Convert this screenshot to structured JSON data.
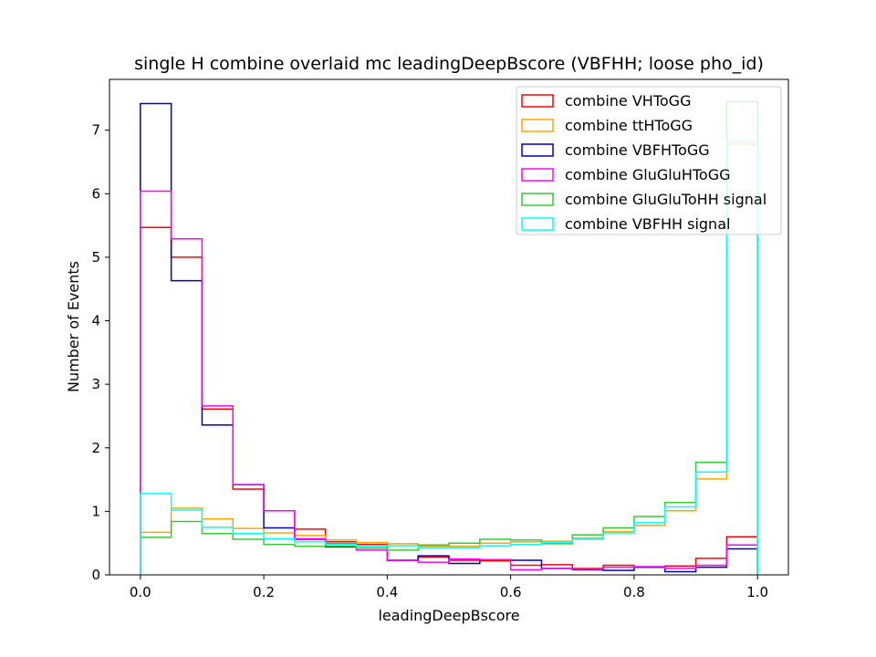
{
  "chart_data": {
    "type": "histogram-step",
    "title": "single H combine overlaid mc leadingDeepBscore (VBFHH; loose pho_id)",
    "xlabel": "leadingDeepBscore",
    "ylabel": "Number of Events",
    "xlim": [
      -0.05,
      1.05
    ],
    "ylim": [
      0,
      7.8
    ],
    "xticks": [
      "0.0",
      "0.2",
      "0.4",
      "0.6",
      "0.8",
      "1.0"
    ],
    "yticks": [
      "0",
      "1",
      "2",
      "3",
      "4",
      "5",
      "6",
      "7"
    ],
    "legend_position": "upper right",
    "bin_edges": [
      0.0,
      0.05,
      0.1,
      0.15,
      0.2,
      0.25,
      0.3,
      0.35,
      0.4,
      0.45,
      0.5,
      0.55,
      0.6,
      0.65,
      0.7,
      0.75,
      0.8,
      0.85,
      0.9,
      0.95,
      1.0
    ],
    "series": [
      {
        "name": "combine VHToGG",
        "color": "#ff0000",
        "values": [
          5.47,
          5.0,
          2.61,
          1.35,
          1.01,
          0.72,
          0.52,
          0.48,
          0.23,
          0.28,
          0.23,
          0.22,
          0.15,
          0.16,
          0.1,
          0.15,
          0.12,
          0.14,
          0.26,
          0.6
        ]
      },
      {
        "name": "combine ttHToGG",
        "color": "#ffa500",
        "values": [
          0.67,
          1.05,
          0.88,
          0.73,
          0.66,
          0.62,
          0.55,
          0.51,
          0.49,
          0.45,
          0.45,
          0.5,
          0.52,
          0.53,
          0.58,
          0.68,
          0.78,
          1.01,
          1.51,
          6.78
        ]
      },
      {
        "name": "combine VBFHToGG",
        "color": "#0000cc",
        "values": [
          7.42,
          4.63,
          2.36,
          1.42,
          0.74,
          0.56,
          0.44,
          0.42,
          0.23,
          0.3,
          0.18,
          0.24,
          0.23,
          0.1,
          0.08,
          0.07,
          0.12,
          0.05,
          0.12,
          0.41
        ]
      },
      {
        "name": "combine GluGluHToGG",
        "color": "#ff00ff",
        "values": [
          6.04,
          5.29,
          2.66,
          1.42,
          1.01,
          0.57,
          0.49,
          0.39,
          0.23,
          0.2,
          0.25,
          0.24,
          0.08,
          0.1,
          0.09,
          0.12,
          0.13,
          0.1,
          0.15,
          0.47
        ]
      },
      {
        "name": "combine GluGluToHH signal",
        "color": "#33cc33",
        "values": [
          0.59,
          0.84,
          0.65,
          0.56,
          0.48,
          0.45,
          0.45,
          0.42,
          0.39,
          0.47,
          0.5,
          0.56,
          0.55,
          0.49,
          0.63,
          0.74,
          0.92,
          1.14,
          1.77,
          7.45
        ]
      },
      {
        "name": "combine VBFHH signal",
        "color": "#00ffff",
        "values": [
          1.28,
          1.02,
          0.75,
          0.65,
          0.57,
          0.52,
          0.48,
          0.45,
          0.46,
          0.43,
          0.43,
          0.46,
          0.48,
          0.51,
          0.56,
          0.66,
          0.82,
          1.07,
          1.62,
          6.82
        ]
      }
    ]
  }
}
